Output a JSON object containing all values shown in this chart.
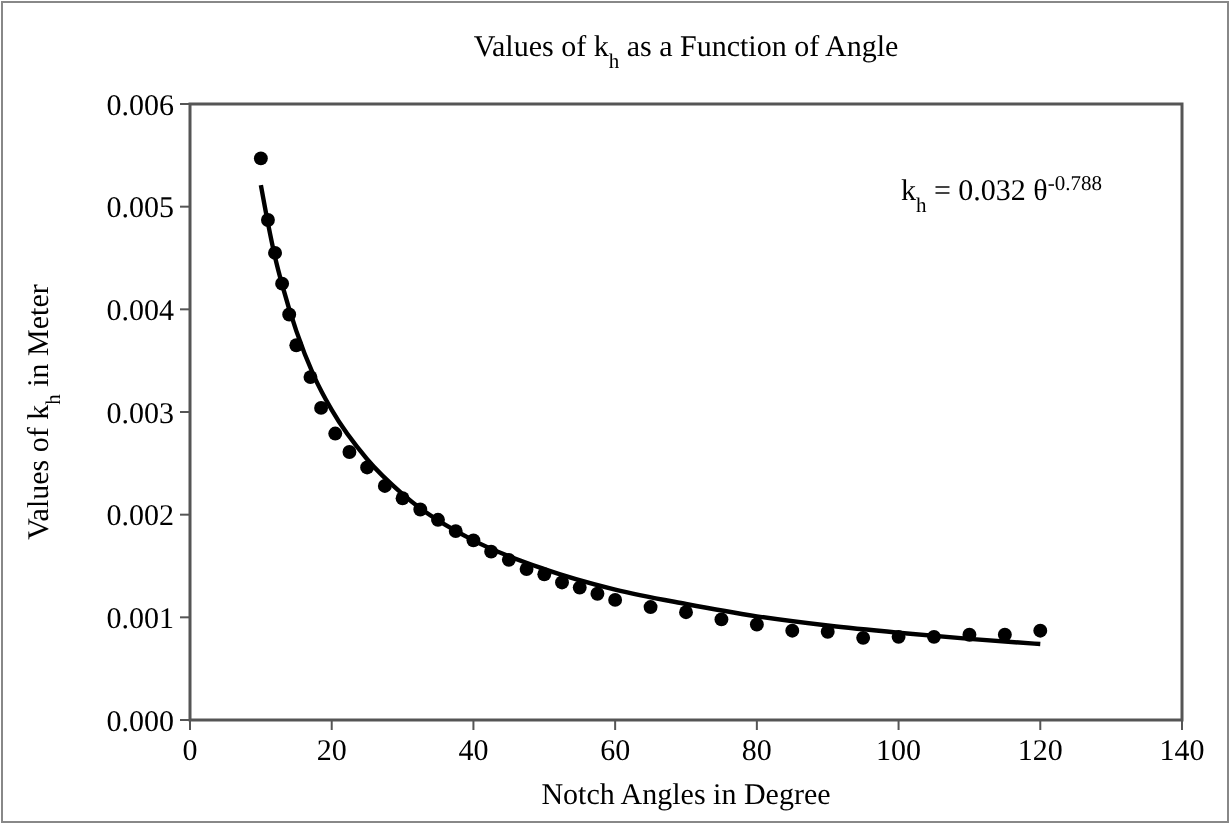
{
  "chart_data": {
    "type": "scatter",
    "title": "Values of k$_{h}$ as a Function of Angle",
    "xlabel": "Notch Angles in Degree",
    "ylabel": "Values of k$_{h}$ in Meter",
    "annotations": [
      "k$_{h}$ = 0.032 θ$^{-0.788}$"
    ],
    "xlim": [
      0,
      140
    ],
    "xticks": [
      0,
      20,
      40,
      60,
      80,
      100,
      120,
      140
    ],
    "ylim": [
      0,
      0.006
    ],
    "yticks": [
      {
        "value": 0,
        "label": "0.000"
      },
      {
        "value": 0.001,
        "label": "0.001"
      },
      {
        "value": 0.002,
        "label": "0.002"
      },
      {
        "value": 0.003,
        "label": "0.003"
      },
      {
        "value": 0.004,
        "label": "0.004"
      },
      {
        "value": 0.005,
        "label": "0.005"
      },
      {
        "value": 0.006,
        "label": "0.006"
      }
    ],
    "grid": false,
    "marker": "circle",
    "series": [
      {
        "color": "#000000",
        "x": [
          10,
          11,
          12,
          13,
          14,
          15,
          17,
          18.5,
          20.5,
          22.5,
          25,
          27.5,
          30,
          32.5,
          35,
          37.5,
          40,
          42.5,
          45,
          47.5,
          50,
          52.5,
          55,
          57.5,
          60,
          65,
          70,
          75,
          80,
          85,
          90,
          95,
          100,
          105,
          110,
          115,
          120
        ],
        "values": [
          0.00547,
          0.00487,
          0.00455,
          0.00425,
          0.00395,
          0.00365,
          0.00334,
          0.00304,
          0.00279,
          0.00261,
          0.00246,
          0.00228,
          0.00216,
          0.00205,
          0.00195,
          0.00184,
          0.00175,
          0.00164,
          0.00156,
          0.00147,
          0.00142,
          0.00134,
          0.00129,
          0.00123,
          0.00117,
          0.0011,
          0.00105,
          0.00098,
          0.00093,
          0.00087,
          0.00086,
          0.0008,
          0.00081,
          0.00081,
          0.00083,
          0.00083,
          0.00087
        ]
      },
      {
        "type": "line",
        "color": "#000000",
        "line_style": "solid",
        "marker": "none",
        "x": [
          10,
          11,
          12,
          13,
          15,
          17.5,
          20,
          25,
          30,
          40,
          50,
          60,
          70,
          80,
          90,
          100,
          110,
          120
        ],
        "values": [
          0.00521,
          0.00484,
          0.00451,
          0.00424,
          0.00379,
          0.00335,
          0.00302,
          0.00254,
          0.0022,
          0.00175,
          0.00147,
          0.00127,
          0.00113,
          0.00101,
          0.00092,
          0.00085,
          0.00079,
          0.00074
        ]
      }
    ]
  }
}
